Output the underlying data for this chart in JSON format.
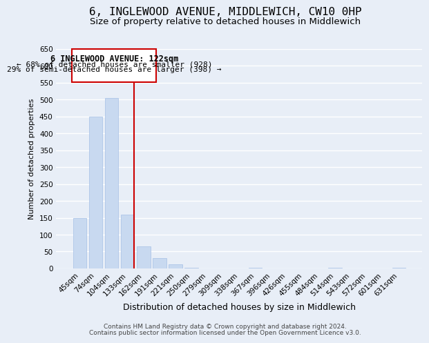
{
  "title": "6, INGLEWOOD AVENUE, MIDDLEWICH, CW10 0HP",
  "subtitle": "Size of property relative to detached houses in Middlewich",
  "xlabel": "Distribution of detached houses by size in Middlewich",
  "ylabel": "Number of detached properties",
  "categories": [
    "45sqm",
    "74sqm",
    "104sqm",
    "133sqm",
    "162sqm",
    "191sqm",
    "221sqm",
    "250sqm",
    "279sqm",
    "309sqm",
    "338sqm",
    "367sqm",
    "396sqm",
    "426sqm",
    "455sqm",
    "484sqm",
    "514sqm",
    "543sqm",
    "572sqm",
    "601sqm",
    "631sqm"
  ],
  "bar_heights": [
    150,
    449,
    505,
    160,
    65,
    30,
    12,
    2,
    0,
    0,
    0,
    2,
    0,
    0,
    0,
    0,
    2,
    0,
    0,
    0,
    2
  ],
  "bar_color": "#c8d9f0",
  "bar_edge_color": "#aec6e8",
  "grid_color": "#ffffff",
  "bg_color": "#e8eef7",
  "vline_x_index": 3,
  "vline_color": "#cc0000",
  "ylim": [
    0,
    650
  ],
  "yticks": [
    0,
    50,
    100,
    150,
    200,
    250,
    300,
    350,
    400,
    450,
    500,
    550,
    600,
    650
  ],
  "annotation_title": "6 INGLEWOOD AVENUE: 122sqm",
  "annotation_line1": "← 68% of detached houses are smaller (928)",
  "annotation_line2": "29% of semi-detached houses are larger (398) →",
  "annotation_box_color": "#ffffff",
  "annotation_border_color": "#cc0000",
  "footer_line1": "Contains HM Land Registry data © Crown copyright and database right 2024.",
  "footer_line2": "Contains public sector information licensed under the Open Government Licence v3.0.",
  "title_fontsize": 11.5,
  "subtitle_fontsize": 9.5,
  "xlabel_fontsize": 9,
  "ylabel_fontsize": 8,
  "tick_fontsize": 7.5,
  "annotation_title_fontsize": 8.5,
  "annotation_text_fontsize": 8,
  "footer_fontsize": 6.5
}
